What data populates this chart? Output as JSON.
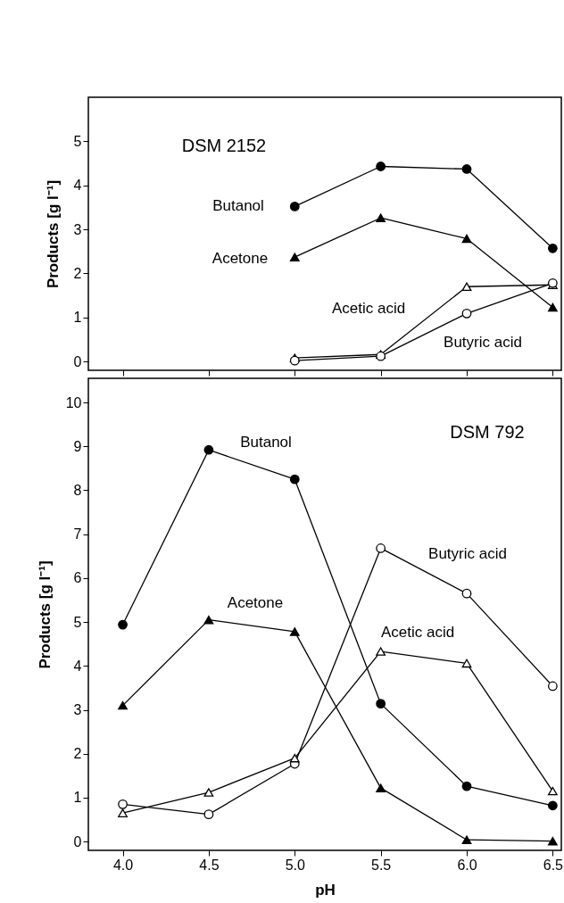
{
  "chart_data": [
    {
      "type": "line",
      "ylabel": "Products [g l⁻¹]",
      "x": [
        5.0,
        5.5,
        6.0,
        6.5
      ],
      "xlim": [
        3.8,
        6.55
      ],
      "xticks": [
        {
          "value": 4.0,
          "label": null
        },
        {
          "value": 4.5,
          "label": null
        },
        {
          "value": 5.0,
          "label": null
        },
        {
          "value": 5.5,
          "label": null
        },
        {
          "value": 6.0,
          "label": null
        },
        {
          "value": 6.5,
          "label": null
        }
      ],
      "ylim": [
        -0.2,
        6.0
      ],
      "yticks": [
        0,
        1,
        2,
        3,
        4,
        5
      ],
      "tick_labels": "y",
      "grid": false,
      "line_style": "solid",
      "series": [
        {
          "color": "#000000",
          "marker": "circle",
          "values": [
            3.52,
            4.43,
            4.37,
            2.57
          ]
        },
        {
          "color": "#000000",
          "marker": "triangle",
          "values": [
            2.37,
            3.26,
            2.79,
            1.23
          ]
        },
        {
          "color": "#ffffff",
          "marker": "triangle",
          "values": [
            0.08,
            0.16,
            1.7,
            1.74
          ]
        },
        {
          "color": "#ffffff",
          "marker": "circle",
          "values": [
            0.02,
            0.12,
            1.09,
            1.78
          ]
        }
      ],
      "annotations": [
        "DSM 2152",
        "Butanol",
        "Acetone",
        "Acetic acid",
        "Butyric acid"
      ]
    },
    {
      "type": "line",
      "xlabel": "pH",
      "ylabel": "Products [g l⁻¹]",
      "x": [
        4.0,
        4.5,
        5.0,
        5.5,
        6.0,
        6.5
      ],
      "xlim": [
        3.8,
        6.55
      ],
      "xticks": [
        {
          "value": 4.0,
          "label": "4.0"
        },
        {
          "value": 4.5,
          "label": "4.5"
        },
        {
          "value": 5.0,
          "label": "5.0"
        },
        {
          "value": 5.5,
          "label": "5.5"
        },
        {
          "value": 6.0,
          "label": "6.0"
        },
        {
          "value": 6.5,
          "label": "6.5"
        }
      ],
      "ylim": [
        -0.2,
        10.55
      ],
      "yticks": [
        0,
        1,
        2,
        3,
        4,
        5,
        6,
        7,
        8,
        9,
        10
      ],
      "grid": false,
      "line_style": "solid",
      "series": [
        {
          "color": "#000000",
          "marker": "circle",
          "values": [
            4.94,
            8.92,
            8.25,
            3.14,
            1.26,
            0.82
          ]
        },
        {
          "color": "#000000",
          "marker": "triangle",
          "values": [
            3.1,
            5.05,
            4.78,
            1.22,
            0.04,
            0.01
          ]
        },
        {
          "color": "#ffffff",
          "marker": "circle",
          "values": [
            0.85,
            0.62,
            1.77,
            6.68,
            5.65,
            3.54
          ]
        },
        {
          "color": "#ffffff",
          "marker": "triangle",
          "values": [
            0.65,
            1.12,
            1.9,
            4.33,
            4.06,
            1.15
          ]
        }
      ],
      "annotations": [
        "DSM 792",
        "Butanol",
        "Acetone",
        "Butyric acid",
        "Acetic acid"
      ]
    }
  ]
}
